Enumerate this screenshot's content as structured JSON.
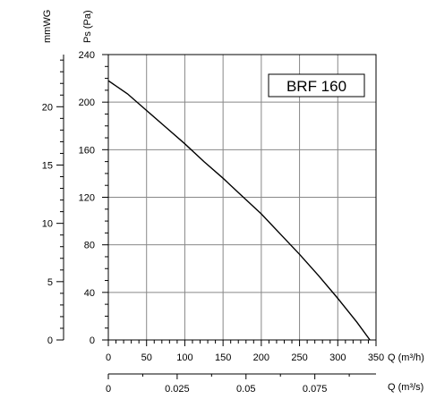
{
  "chart_data": {
    "type": "line",
    "title": "BRF 160",
    "series": [
      {
        "name": "BRF 160",
        "points": [
          [
            0,
            218
          ],
          [
            25,
            207
          ],
          [
            50,
            193
          ],
          [
            75,
            179
          ],
          [
            100,
            165
          ],
          [
            125,
            150
          ],
          [
            150,
            136
          ],
          [
            175,
            121
          ],
          [
            200,
            106
          ],
          [
            225,
            89
          ],
          [
            250,
            72
          ],
          [
            275,
            54
          ],
          [
            300,
            35
          ],
          [
            325,
            15
          ],
          [
            342,
            0
          ]
        ]
      }
    ],
    "axes": {
      "y_pa": {
        "label": "Ps (Pa)",
        "min": 0,
        "max": 240,
        "ticks": [
          0,
          40,
          80,
          120,
          160,
          200,
          240
        ],
        "tick_labels": [
          "0",
          "40",
          "80",
          "120",
          "160",
          "200",
          "240"
        ]
      },
      "y_mmwg": {
        "label": "mmWG",
        "ticks": [
          0,
          5,
          10,
          15,
          20
        ],
        "tick_labels": [
          "0",
          "5",
          "10",
          "15",
          "20"
        ]
      },
      "x_m3h": {
        "label": "Q (m³/h)",
        "min": 0,
        "max": 350,
        "ticks": [
          0,
          50,
          100,
          150,
          200,
          250,
          300,
          350
        ],
        "tick_labels": [
          "0",
          "50",
          "100",
          "150",
          "200",
          "250",
          "300",
          "350"
        ]
      },
      "x_m3s": {
        "label": "Q (m³/s)",
        "ticks": [
          0,
          0.025,
          0.05,
          0.075
        ],
        "tick_labels": [
          "0",
          "0.025",
          "0.05",
          "0.075"
        ]
      }
    },
    "grid": true,
    "line_color": "#000000"
  }
}
